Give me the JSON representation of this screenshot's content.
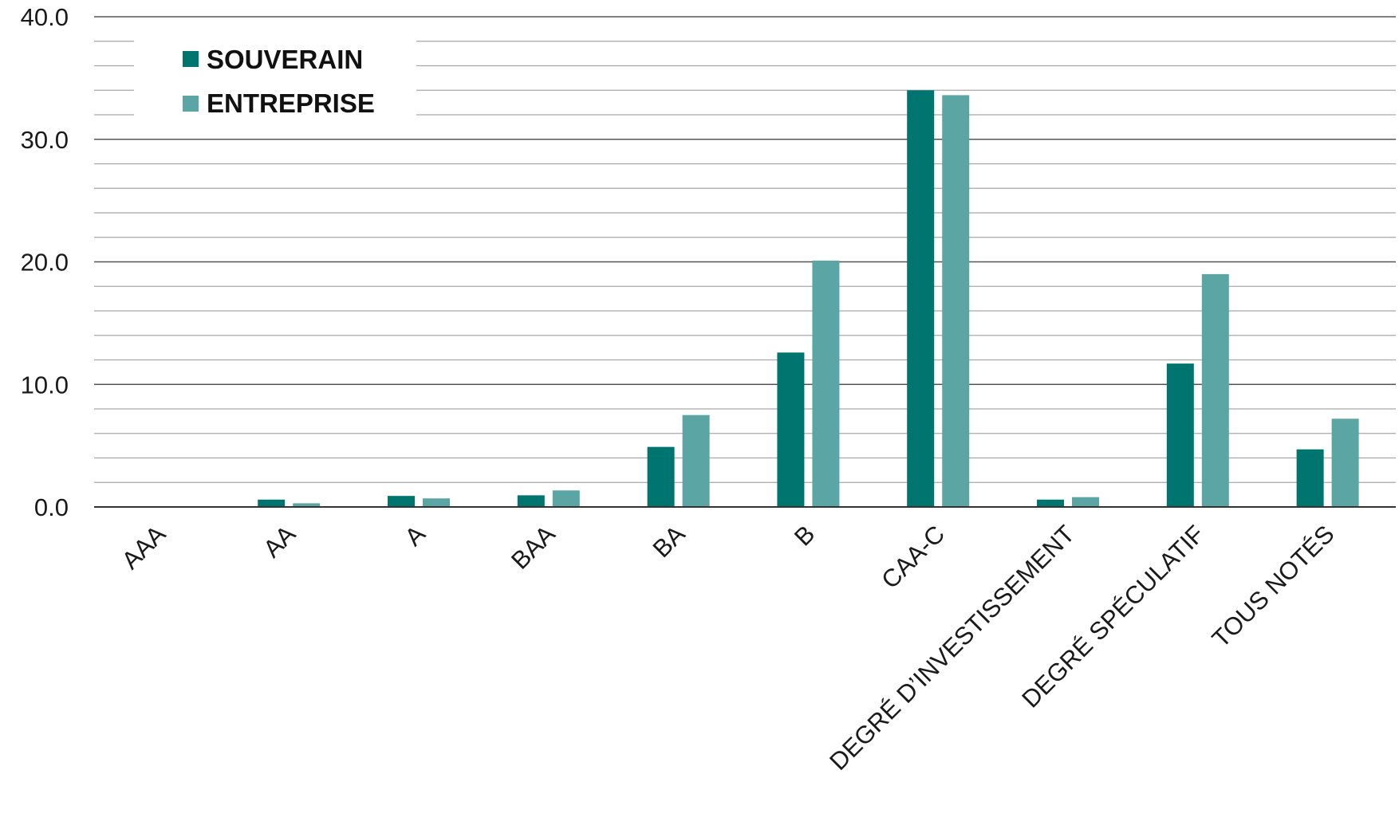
{
  "chart_data": {
    "type": "bar",
    "title": "",
    "xlabel": "",
    "ylabel": "",
    "ylim": [
      0,
      40
    ],
    "y_ticks": [
      "0.0",
      "10.0",
      "20.0",
      "30.0",
      "40.0"
    ],
    "grid": true,
    "legend_position": "top-left",
    "categories": [
      "AAA",
      "AA",
      "A",
      "BAA",
      "BA",
      "B",
      "CAA-C",
      "DEGRÉ D’INVESTISSEMENT",
      "DEGRÉ SPÉCULATIF",
      "TOUS NOTÉS"
    ],
    "series": [
      {
        "name": "SOUVERAIN",
        "color": "#007570",
        "values": [
          0.0,
          0.6,
          0.9,
          0.95,
          4.9,
          12.6,
          34.0,
          0.6,
          11.7,
          4.7
        ]
      },
      {
        "name": "ENTREPRISE",
        "color": "#5ba6a5",
        "values": [
          0.0,
          0.3,
          0.7,
          1.35,
          7.5,
          20.1,
          33.6,
          0.8,
          19.0,
          7.2
        ]
      }
    ]
  }
}
